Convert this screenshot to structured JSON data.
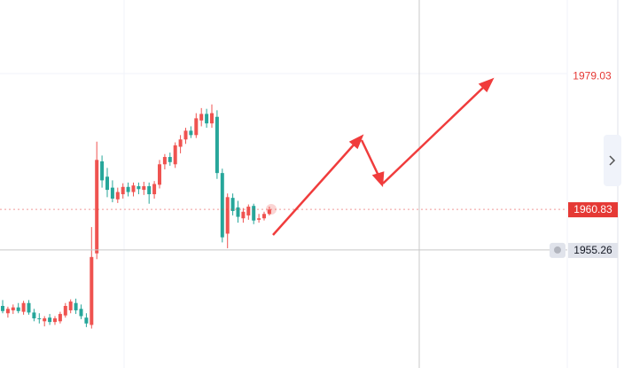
{
  "chart_data": {
    "type": "candlestick",
    "up_color": "#ef5350",
    "down_color": "#26a69a",
    "ylim": [
      1939.1,
      1989.5
    ],
    "open": [
      1947.6,
      1946.6,
      1947.0,
      1947.4,
      1946.8,
      1948.0,
      1946.7,
      1945.9,
      1945.5,
      1946.0,
      1945.4,
      1945.5,
      1946.3,
      1947.0,
      1948.0,
      1947.2,
      1946.0,
      1945.0,
      1954.8,
      1967.4,
      1965.3,
      1963.8,
      1962.2,
      1962.9,
      1963.9,
      1963.2,
      1964.0,
      1963.5,
      1964.0,
      1962.9,
      1964.2,
      1967.0,
      1968.0,
      1967.0,
      1969.4,
      1970.4,
      1971.6,
      1971.0,
      1973.0,
      1973.9,
      1972.6,
      1973.5,
      1965.8,
      1957.5,
      1962.4,
      1961.1,
      1959.6,
      1960.0,
      1961.3,
      1959.4,
      1959.6,
      1960.2
    ],
    "high": [
      1948.4,
      1947.5,
      1947.8,
      1948.0,
      1948.3,
      1948.4,
      1947.2,
      1946.6,
      1946.2,
      1946.5,
      1946.2,
      1946.8,
      1948.0,
      1948.5,
      1948.6,
      1947.8,
      1946.6,
      1958.4,
      1970.1,
      1968.2,
      1966.5,
      1964.8,
      1963.8,
      1964.4,
      1964.5,
      1964.5,
      1964.5,
      1964.6,
      1964.5,
      1964.7,
      1967.6,
      1968.4,
      1968.6,
      1970.0,
      1971.0,
      1972.0,
      1972.2,
      1974.0,
      1974.7,
      1974.6,
      1975.2,
      1974.4,
      1966.4,
      1963.0,
      1963.0,
      1962.0,
      1961.0,
      1961.5,
      1961.6,
      1960.2,
      1960.5,
      1961.2
    ],
    "low": [
      1946.6,
      1946.0,
      1946.5,
      1946.6,
      1946.4,
      1946.4,
      1945.5,
      1945.2,
      1944.8,
      1945.0,
      1945.0,
      1945.2,
      1946.0,
      1946.6,
      1946.5,
      1945.8,
      1944.7,
      1944.5,
      1954.0,
      1963.8,
      1962.5,
      1961.8,
      1961.7,
      1962.3,
      1962.6,
      1962.6,
      1962.9,
      1962.8,
      1961.6,
      1962.3,
      1963.7,
      1966.3,
      1966.8,
      1966.5,
      1968.5,
      1969.8,
      1970.6,
      1970.6,
      1972.2,
      1972.0,
      1972.0,
      1965.0,
      1956.3,
      1955.5,
      1960.0,
      1959.0,
      1959.0,
      1959.4,
      1958.8,
      1959.0,
      1959.3,
      1960.0
    ],
    "close": [
      1946.9,
      1947.2,
      1947.4,
      1946.9,
      1948.0,
      1946.7,
      1945.9,
      1945.8,
      1945.9,
      1945.4,
      1945.9,
      1946.5,
      1947.6,
      1948.2,
      1947.0,
      1946.2,
      1945.2,
      1954.3,
      1967.6,
      1964.8,
      1963.5,
      1962.3,
      1963.2,
      1963.9,
      1963.2,
      1964.1,
      1963.6,
      1964.0,
      1962.9,
      1964.3,
      1967.0,
      1968.0,
      1967.3,
      1969.6,
      1970.4,
      1971.6,
      1971.0,
      1973.3,
      1973.9,
      1972.6,
      1974.0,
      1965.8,
      1957.0,
      1962.5,
      1960.6,
      1959.8,
      1960.5,
      1961.2,
      1959.3,
      1959.6,
      1960.2,
      1960.8
    ],
    "price_labels": [
      {
        "value": 1979.03,
        "label": "1979.03",
        "style": "text",
        "color": "#e53935"
      },
      {
        "value": 1960.83,
        "label": "1960.83",
        "style": "box",
        "color": "#e53935"
      },
      {
        "value": 1955.26,
        "label": "1955.26",
        "style": "crosshair",
        "color": "#e0e3eb"
      }
    ]
  }
}
